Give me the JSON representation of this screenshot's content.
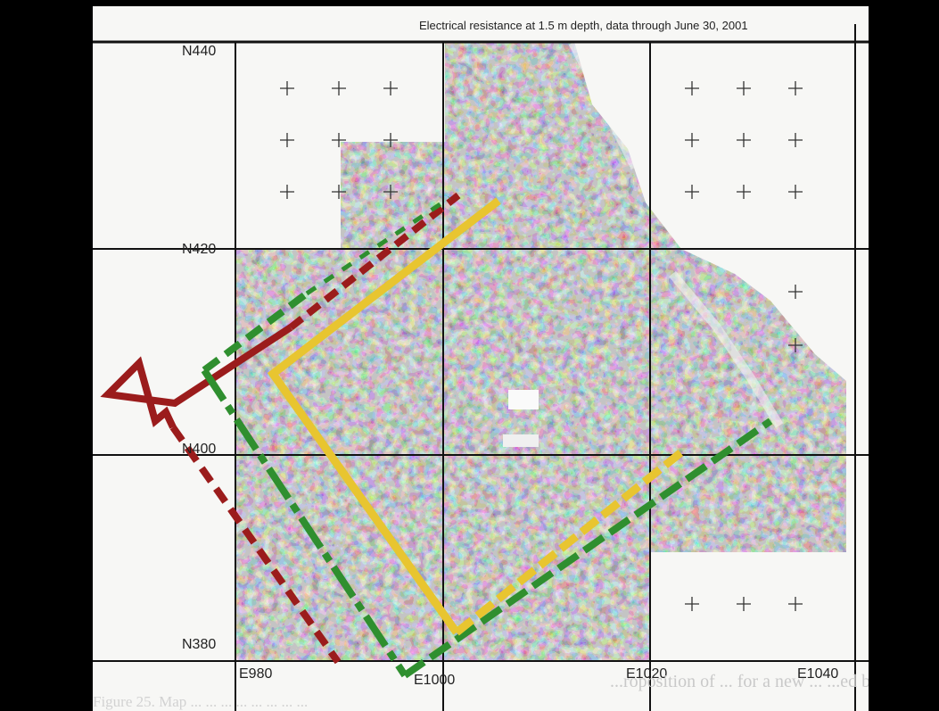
{
  "map": {
    "title": "Electrical resistance at 1.5 m depth, data through June 30, 2001",
    "northing_labels": [
      "N440",
      "N420",
      "N400",
      "N380"
    ],
    "easting_labels": [
      "E980",
      "E1000",
      "E1020",
      "E1040"
    ],
    "caption_lines": [
      "...roposition of ... for a new ... ...ed by ...",
      "Figure 25. Map ... ... ... ... ... ... ... ..."
    ],
    "outline_colors": {
      "red": "#9b1c1c",
      "green": "#2f8f2f",
      "yellow": "#e8c530"
    }
  }
}
